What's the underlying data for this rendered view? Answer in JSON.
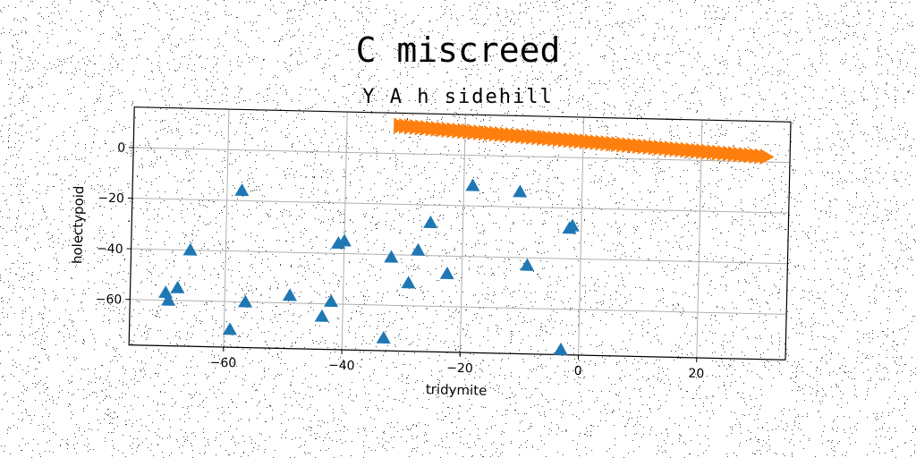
{
  "chart_data": {
    "type": "scatter",
    "title": "C miscreed",
    "subtitle": "Y A h sidehill",
    "xlabel": "tridymite",
    "ylabel": "holectypoid",
    "xlim": [
      -76,
      35
    ],
    "ylim": [
      -78,
      16
    ],
    "xticks": [
      -60,
      -40,
      -20,
      0,
      20
    ],
    "yticks": [
      0,
      -20,
      -40,
      -60
    ],
    "grid": true,
    "series": [
      {
        "marker": "triangle",
        "color": "#1f77b4",
        "points": [
          {
            "x": -57.5,
            "y": -16
          },
          {
            "x": -66,
            "y": -40
          },
          {
            "x": -70,
            "y": -57
          },
          {
            "x": -68,
            "y": -55
          },
          {
            "x": -69.5,
            "y": -60
          },
          {
            "x": -56.5,
            "y": -60
          },
          {
            "x": -59,
            "y": -71
          },
          {
            "x": -49,
            "y": -57
          },
          {
            "x": -41,
            "y": -36
          },
          {
            "x": -40,
            "y": -35
          },
          {
            "x": -42,
            "y": -59
          },
          {
            "x": -43.5,
            "y": -65
          },
          {
            "x": -33,
            "y": -73
          },
          {
            "x": -32,
            "y": -41
          },
          {
            "x": -29,
            "y": -51
          },
          {
            "x": -27.5,
            "y": -38
          },
          {
            "x": -25.5,
            "y": -27
          },
          {
            "x": -22.5,
            "y": -47
          },
          {
            "x": -18.5,
            "y": -12
          },
          {
            "x": -10.5,
            "y": -14
          },
          {
            "x": -9,
            "y": -43
          },
          {
            "x": -2,
            "y": -28
          },
          {
            "x": -1.5,
            "y": -27
          },
          {
            "x": -3,
            "y": -76
          }
        ]
      },
      {
        "marker": "triangle-right",
        "color": "#ff7f0e",
        "x_start": -31,
        "x_end": 31,
        "y_start": 11,
        "y_end": 2,
        "count": 70
      }
    ]
  }
}
